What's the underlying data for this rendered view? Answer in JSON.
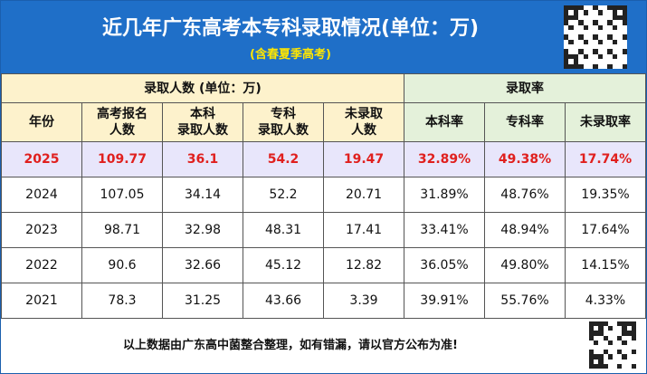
{
  "header": {
    "title": "近几年广东高考本专科录取情况(单位：万)",
    "subtitle": "(含春夏季高考)"
  },
  "table": {
    "group_headers": [
      "录取人数 (单位：万)",
      "录取率"
    ],
    "columns": [
      "年份",
      "高考报名\n人数",
      "本科\n录取人数",
      "专科\n录取人数",
      "未录取\n人数",
      "本科率",
      "专科率",
      "未录取率"
    ],
    "rows": [
      [
        "2025",
        "109.77",
        "36.1",
        "54.2",
        "19.47",
        "32.89%",
        "49.38%",
        "17.74%"
      ],
      [
        "2024",
        "107.05",
        "34.14",
        "52.2",
        "20.71",
        "31.89%",
        "48.76%",
        "19.35%"
      ],
      [
        "2023",
        "98.71",
        "32.98",
        "48.31",
        "17.41",
        "33.41%",
        "48.94%",
        "17.64%"
      ],
      [
        "2022",
        "90.6",
        "32.66",
        "45.12",
        "12.82",
        "36.05%",
        "49.80%",
        "14.15%"
      ],
      [
        "2021",
        "78.3",
        "31.25",
        "43.66",
        "3.39",
        "39.91%",
        "55.76%",
        "4.33%"
      ]
    ]
  },
  "footer": {
    "note": "以上数据由广东高中菌整合整理，如有错漏，请以官方公布为准!"
  }
}
